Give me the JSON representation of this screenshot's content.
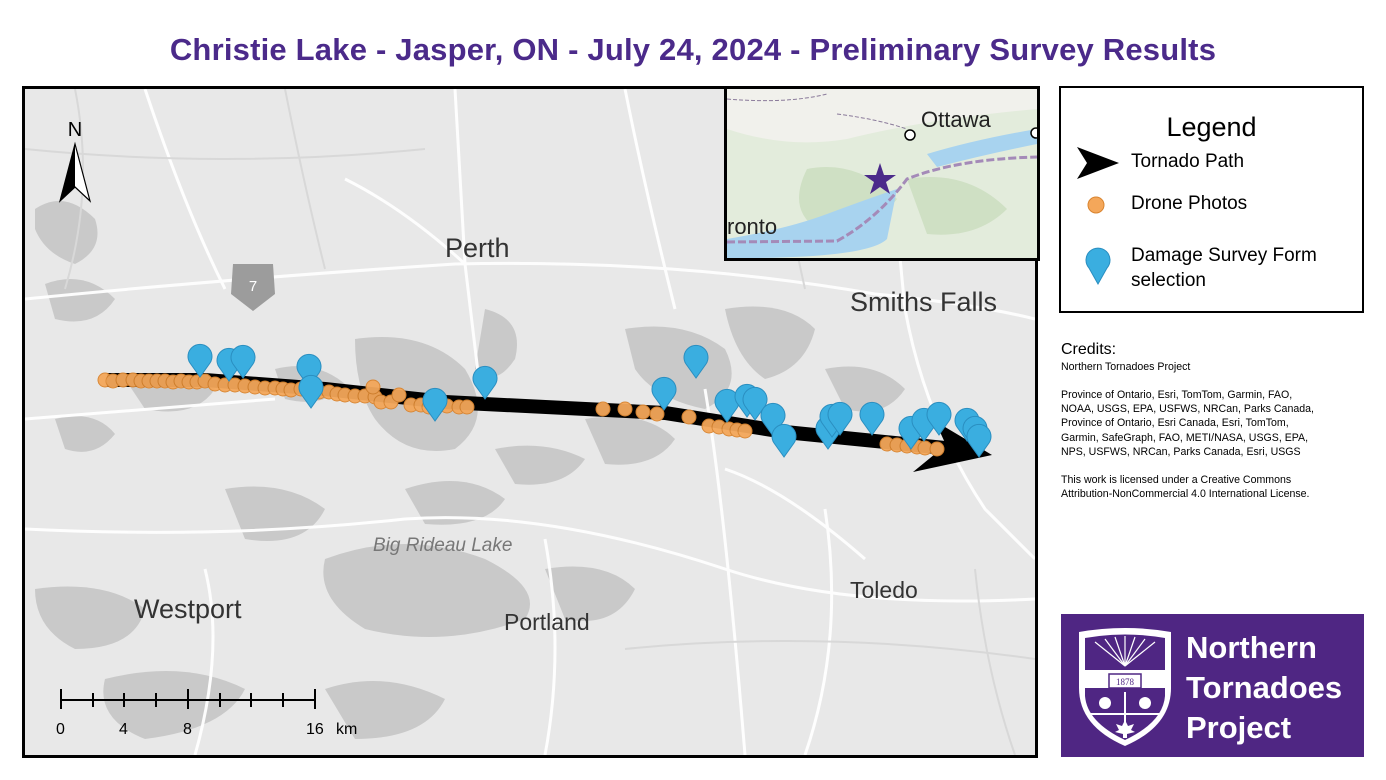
{
  "title": "Christie Lake - Jasper, ON - July 24, 2024 - Preliminary Survey Results",
  "map": {
    "places": {
      "perth": "Perth",
      "smiths_falls": "Smiths Falls",
      "westport": "Westport",
      "portland": "Portland",
      "toledo": "Toledo",
      "big_rideau_lake": "Big Rideau Lake"
    },
    "highway_shield": "7",
    "north_arrow": "N",
    "scale_bar": {
      "ticks": [
        "0",
        "4",
        "8",
        "16"
      ],
      "unit": "km"
    }
  },
  "inset": {
    "ottawa": "Ottawa",
    "toronto": "ronto"
  },
  "legend": {
    "title": "Legend",
    "tornado_path": "Tornado Path",
    "drone_photos": "Drone Photos",
    "damage_line1": "Damage Survey Form",
    "damage_line2": "selection"
  },
  "credits": {
    "heading": "Credits:",
    "line1": "Northern Tornadoes Project",
    "block2": [
      "Province of Ontario, Esri, TomTom, Garmin, FAO,",
      "NOAA, USGS, EPA, USFWS, NRCan, Parks Canada,",
      "Province of Ontario, Esri Canada, Esri, TomTom,",
      "Garmin, SafeGraph, FAO, METI/NASA, USGS, EPA,",
      "NPS, USFWS, NRCan, Parks Canada, Esri, USGS"
    ],
    "block3": [
      "This work is licensed under a Creative Commons",
      "Attribution-NonCommercial 4.0 International License."
    ]
  },
  "logo": {
    "line1": "Northern",
    "line2": "Tornadoes",
    "line3": "Project",
    "shield_text": "1878"
  },
  "colors": {
    "title": "#4b2a8a",
    "drone": "#f4a75a",
    "damage": "#3aaee0",
    "path": "#000000",
    "logo_bg": "#4f2683",
    "water": "#c8c8c8",
    "land": "#e8e8e8"
  }
}
